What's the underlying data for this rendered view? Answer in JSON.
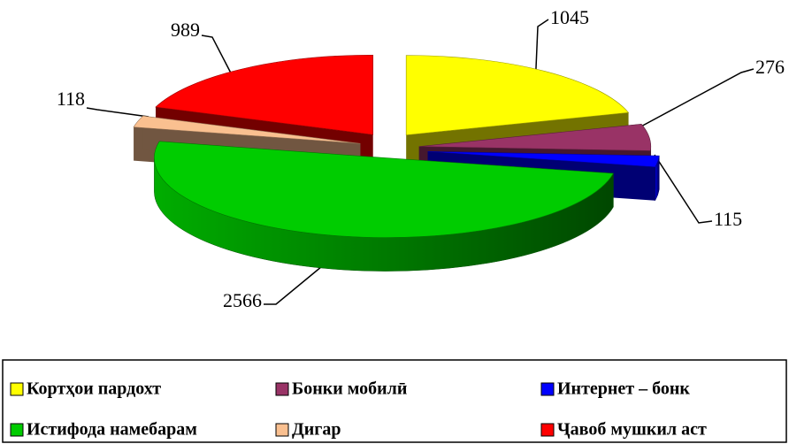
{
  "chart_data": {
    "type": "pie",
    "categories": [
      "Кортҳои пардохт",
      "Бонки мобилӣ",
      "Интернет – бонк",
      "Истифода намебарам",
      "Дигар",
      "Ҷавоб мушкил аст"
    ],
    "values": [
      1045,
      276,
      115,
      2566,
      118,
      989
    ],
    "colors": [
      "#ffff00",
      "#993366",
      "#0000ff",
      "#00cc00",
      "#fac090",
      "#ff0000"
    ],
    "legend": "bottom"
  }
}
